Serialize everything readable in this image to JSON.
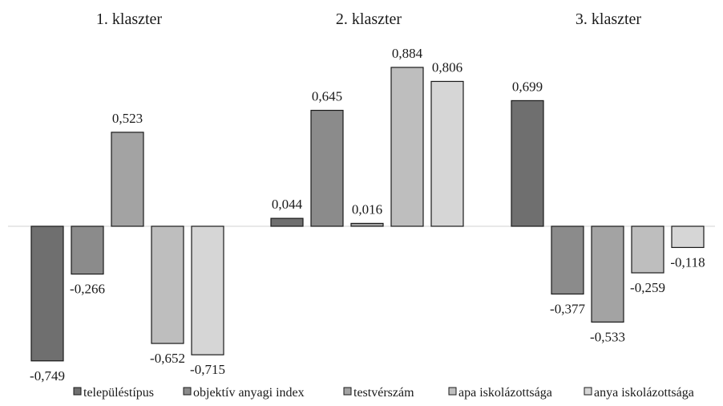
{
  "chart_data": {
    "type": "bar",
    "panels": [
      "1. klaszter",
      "2. klaszter",
      "3. klaszter"
    ],
    "series": [
      {
        "name": "településtípus",
        "values": [
          -0.749,
          0.044,
          0.699
        ],
        "labels": [
          "-0,749",
          "0,044",
          "0,699"
        ],
        "color": "#6f6f6f"
      },
      {
        "name": "objektív anyagi index",
        "values": [
          -0.266,
          0.645,
          -0.377
        ],
        "labels": [
          "-0,266",
          "0,645",
          "-0,377"
        ],
        "color": "#8b8b8b"
      },
      {
        "name": "testvérszám",
        "values": [
          0.523,
          0.016,
          -0.533
        ],
        "labels": [
          "0,523",
          "0,016",
          "-0,533"
        ],
        "color": "#a3a3a3"
      },
      {
        "name": "apa iskolázottsága",
        "values": [
          -0.652,
          0.884,
          -0.259
        ],
        "labels": [
          "-0,652",
          "0,884",
          "-0,259"
        ],
        "color": "#bebebe"
      },
      {
        "name": "anya iskolázottsága",
        "values": [
          -0.715,
          0.806,
          -0.118
        ],
        "labels": [
          "-0,715",
          "0,806",
          "-0,118"
        ],
        "color": "#d6d6d6"
      }
    ],
    "ylim": [
      -0.75,
      0.9
    ],
    "grid": false,
    "legend_position": "bottom",
    "baseline_color": "#d0d0d0"
  }
}
